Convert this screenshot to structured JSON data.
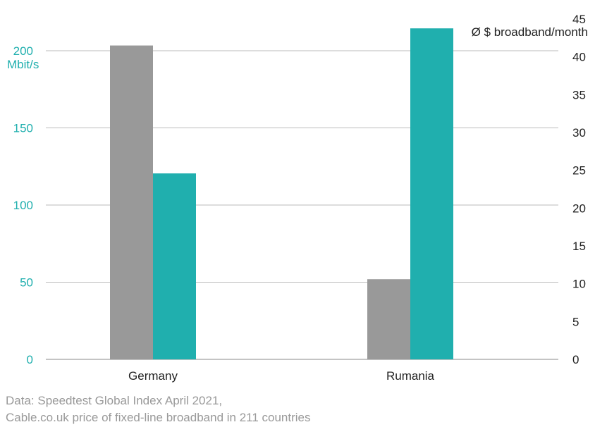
{
  "chart_data": {
    "type": "bar",
    "categories": [
      "Germany",
      "Rumania"
    ],
    "series": [
      {
        "axis": "right",
        "color": "#999999",
        "values": [
          41.5,
          10.6
        ]
      },
      {
        "axis": "left",
        "color": "#20afae",
        "values": [
          120.5,
          214.5
        ]
      }
    ],
    "left_axis": {
      "unit_label": "Mbit/s",
      "ylim": [
        0,
        215
      ],
      "ticks": [
        0,
        50,
        100,
        150,
        200
      ],
      "color": "#20afae"
    },
    "right_axis": {
      "unit_label": "Ø $ broadband/month",
      "ylim": [
        0,
        45
      ],
      "ticks": [
        0,
        5,
        10,
        15,
        20,
        25,
        30,
        35,
        40,
        45
      ],
      "color": "#222222"
    },
    "grid": true
  },
  "source": {
    "line1": "Data: Speedtest Global Index April 2021,",
    "line2": "Cable.co.uk price of fixed-line broadband in 211 countries"
  }
}
